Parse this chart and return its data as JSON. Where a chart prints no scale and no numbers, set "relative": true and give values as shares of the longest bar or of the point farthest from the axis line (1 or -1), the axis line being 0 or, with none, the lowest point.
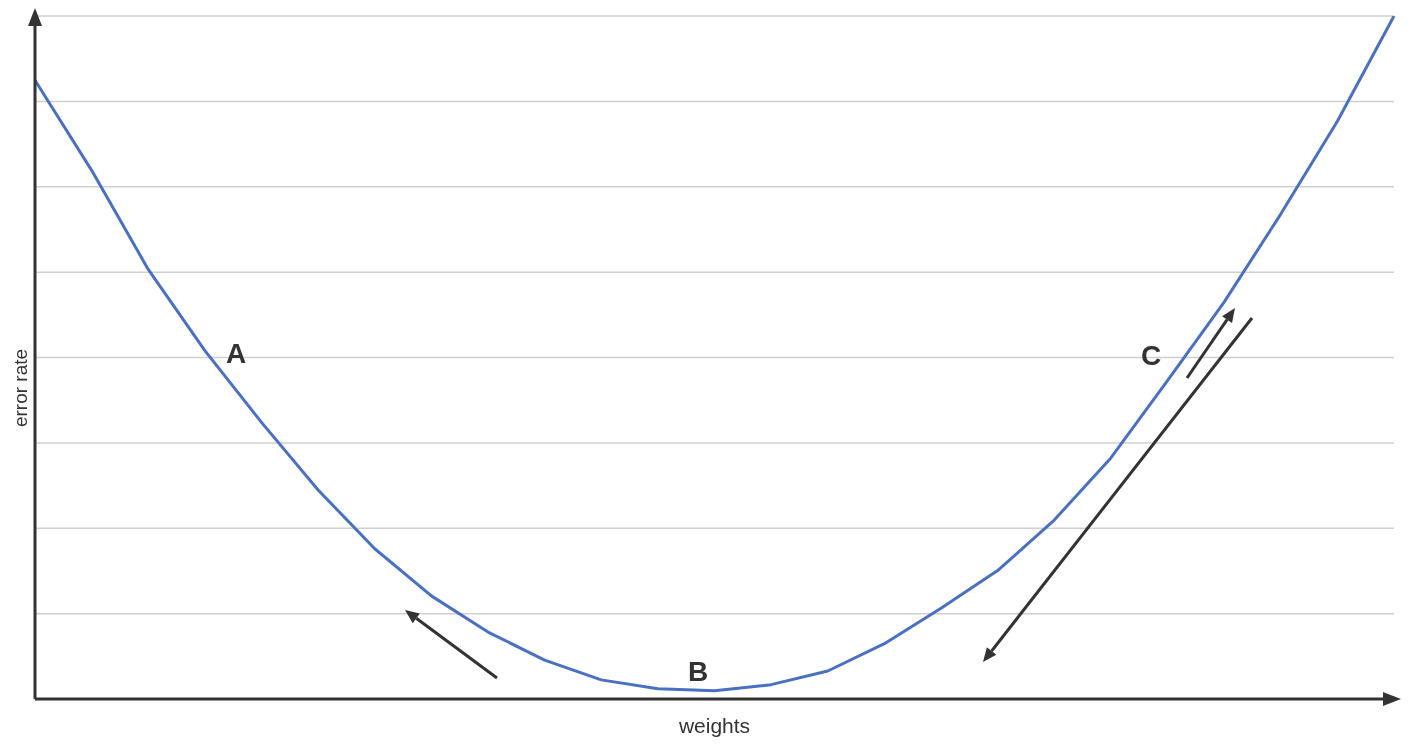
{
  "chart_data": {
    "type": "line",
    "xlabel": "weights",
    "ylabel": "error rate",
    "relative": true,
    "grid": "y",
    "categories": [
      null,
      null,
      null,
      null,
      null,
      null,
      null,
      null,
      null,
      null,
      null,
      null,
      null,
      null,
      null,
      null,
      null,
      null,
      null,
      null,
      null,
      null,
      null,
      null,
      null
    ],
    "series": [
      {
        "color": "#4a70c2",
        "values": [
          0.906,
          0.774,
          0.629,
          0.51,
          0.405,
          0.306,
          0.22,
          0.151,
          0.098,
          0.057,
          0.028,
          0.015,
          0.012,
          0.021,
          0.041,
          0.081,
          0.133,
          0.188,
          0.262,
          0.353,
          0.466,
          0.581,
          0.71,
          0.846,
          1
        ]
      }
    ],
    "annotations": [
      "A",
      "B",
      "C"
    ]
  }
}
